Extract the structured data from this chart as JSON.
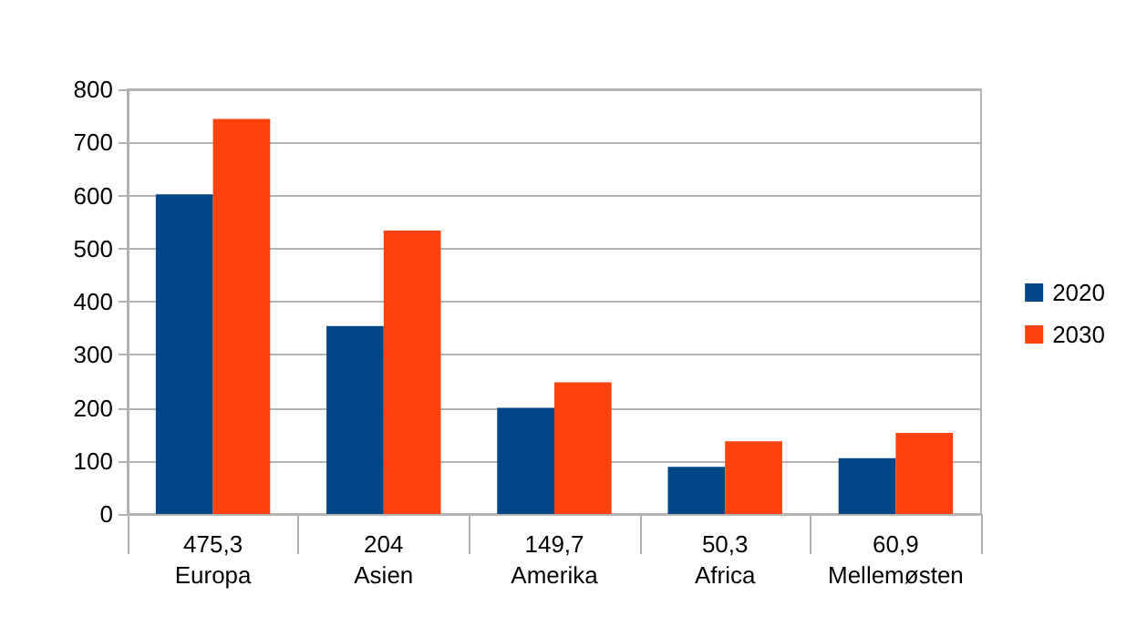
{
  "chart_data": {
    "type": "bar",
    "categories": [
      "475,3\nEuropa",
      "204\nAsien",
      "149,7\nAmerika",
      "50,3\nAfrica",
      "60,9\nMellemøsten"
    ],
    "series": [
      {
        "name": "2020",
        "color": "#004586",
        "values": [
          602,
          354,
          200,
          89,
          105
        ]
      },
      {
        "name": "2030",
        "color": "#ff420e",
        "values": [
          744,
          534,
          248,
          137,
          153
        ]
      }
    ],
    "ylim": [
      0,
      800
    ],
    "yticks": [
      0,
      100,
      200,
      300,
      400,
      500,
      600,
      700,
      800
    ],
    "grid": "y",
    "legend": "right"
  }
}
